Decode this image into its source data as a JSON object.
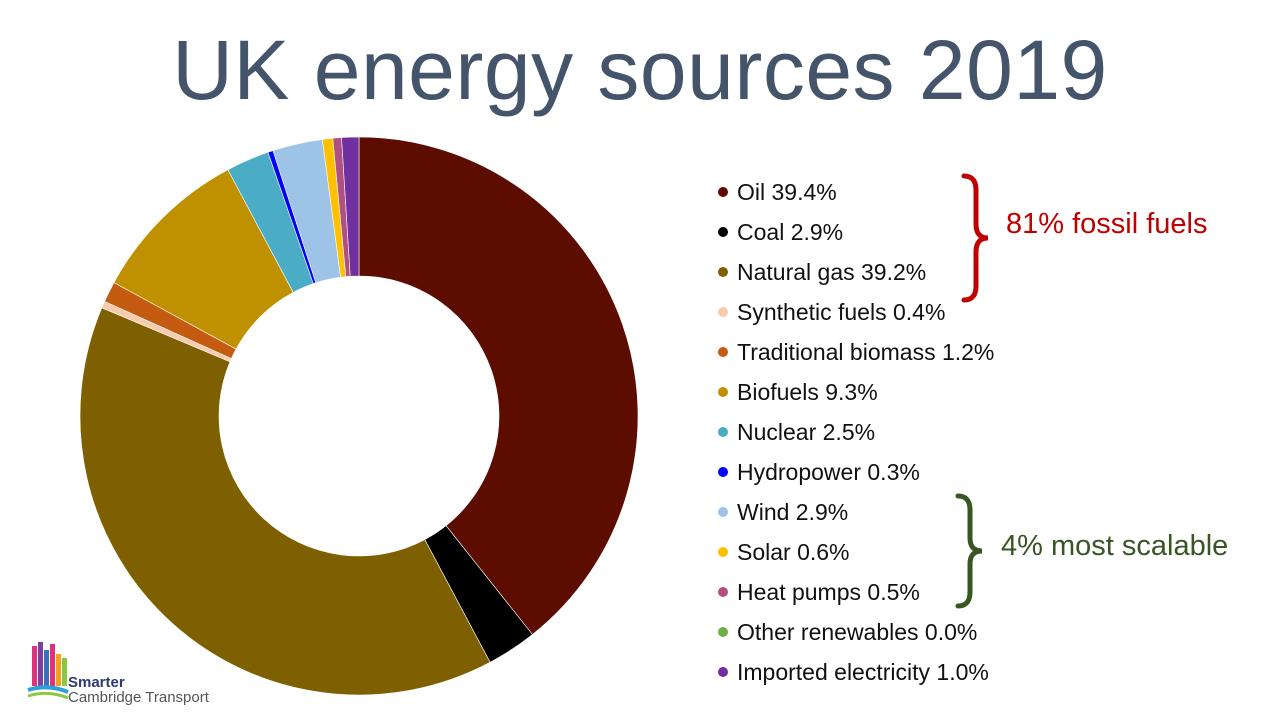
{
  "title": "UK energy sources 2019",
  "chart_data": {
    "type": "pie",
    "variant": "donut",
    "categories": [
      "Oil",
      "Coal",
      "Natural gas",
      "Synthetic fuels",
      "Traditional biomass",
      "Biofuels",
      "Nuclear",
      "Hydropower",
      "Wind",
      "Solar",
      "Heat pumps",
      "Other renewables",
      "Imported electricity"
    ],
    "values": [
      39.4,
      2.9,
      39.2,
      0.4,
      1.2,
      9.3,
      2.5,
      0.3,
      2.9,
      0.6,
      0.5,
      0.0,
      1.0
    ],
    "unit": "%",
    "legend_labels": [
      "Oil 39.4%",
      "Coal 2.9%",
      "Natural gas 39.2%",
      "Synthetic fuels 0.4%",
      "Traditional biomass 1.2%",
      "Biofuels 9.3%",
      "Nuclear 2.5%",
      "Hydropower 0.3%",
      "Wind 2.9%",
      "Solar 0.6%",
      "Heat pumps 0.5%",
      "Other renewables 0.0%",
      "Imported electricity 1.0%"
    ],
    "colors": [
      "#5c0d00",
      "#000000",
      "#7f6000",
      "#f8cbad",
      "#c55a11",
      "#bf9000",
      "#4bacc6",
      "#0000ff",
      "#9dc3e6",
      "#ffc000",
      "#b05080",
      "#70ad47",
      "#7030a0"
    ],
    "legend_position": "right",
    "annotations": [
      {
        "text": "81% fossil fuels",
        "color": "#c00000"
      },
      {
        "text": "4% most scalable",
        "color": "#375623"
      }
    ]
  },
  "logo": {
    "line1": "Smarter",
    "line2": "Cambridge Transport"
  }
}
